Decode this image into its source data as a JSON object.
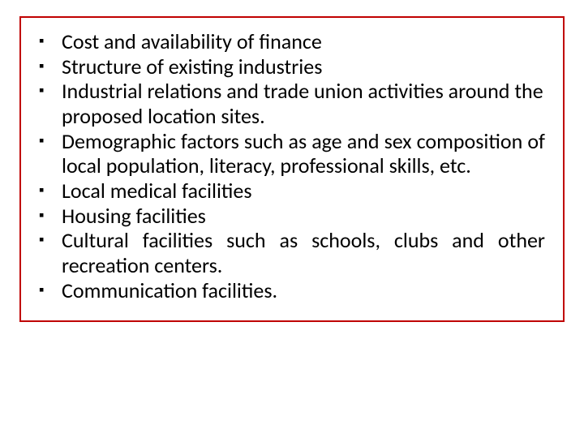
{
  "box": {
    "border_color": "#c00000",
    "background_color": "#ffffff"
  },
  "bullet": {
    "glyph": "▪"
  },
  "items": [
    {
      "text": "Cost and availability of finance",
      "justify": false
    },
    {
      "text": "Structure of existing industries",
      "justify": false
    },
    {
      "text": "Industrial relations and trade union activities around the proposed location sites.",
      "justify": false
    },
    {
      "text": "Demographic factors such as age and sex composition of local population, literacy, professional skills, etc.",
      "justify": true
    },
    {
      "text": "Local medical facilities",
      "justify": false
    },
    {
      "text": "Housing facilities",
      "justify": false
    },
    {
      "text": "Cultural facilities such as schools, clubs and other recreation centers.",
      "justify": true
    },
    {
      "text": "Communication facilities.",
      "justify": false
    }
  ]
}
